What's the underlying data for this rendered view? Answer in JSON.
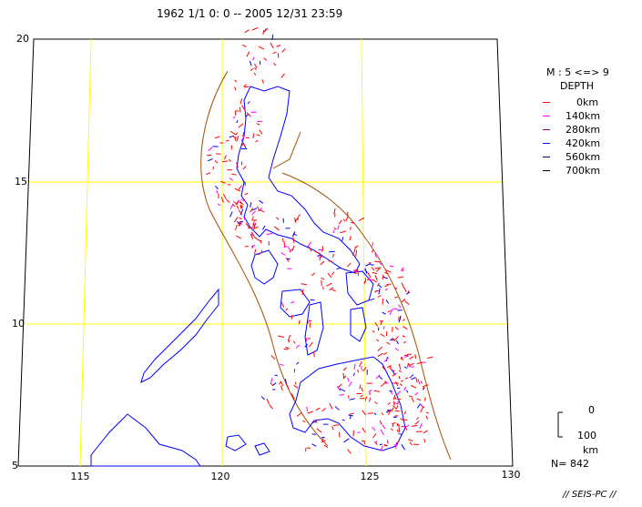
{
  "title": "1962 1/1   0: 0 -- 2005 12/31 23:59",
  "magnitude": "M : 5 <=> 9",
  "depth_title": "DEPTH",
  "depth_legend": [
    {
      "label": "0km",
      "color": "#ff0000"
    },
    {
      "label": "140km",
      "color": "#ff00ff"
    },
    {
      "label": "280km",
      "color": "#a000a0"
    },
    {
      "label": "420km",
      "color": "#0000ff"
    },
    {
      "label": "560km",
      "color": "#000080"
    },
    {
      "label": "700km",
      "color": "#000000"
    }
  ],
  "lat_ticks": [
    "20",
    "15",
    "10",
    "5"
  ],
  "lon_ticks": [
    "115",
    "120",
    "125",
    "130"
  ],
  "scale": {
    "top": "0",
    "bottom": "100",
    "unit": "km"
  },
  "count": "N= 842",
  "credit": "// SEIS-PC //",
  "colors": {
    "grid": "#ffff00",
    "coast": "#0000ff",
    "trench": "#a05000",
    "frame": "#000000"
  }
}
